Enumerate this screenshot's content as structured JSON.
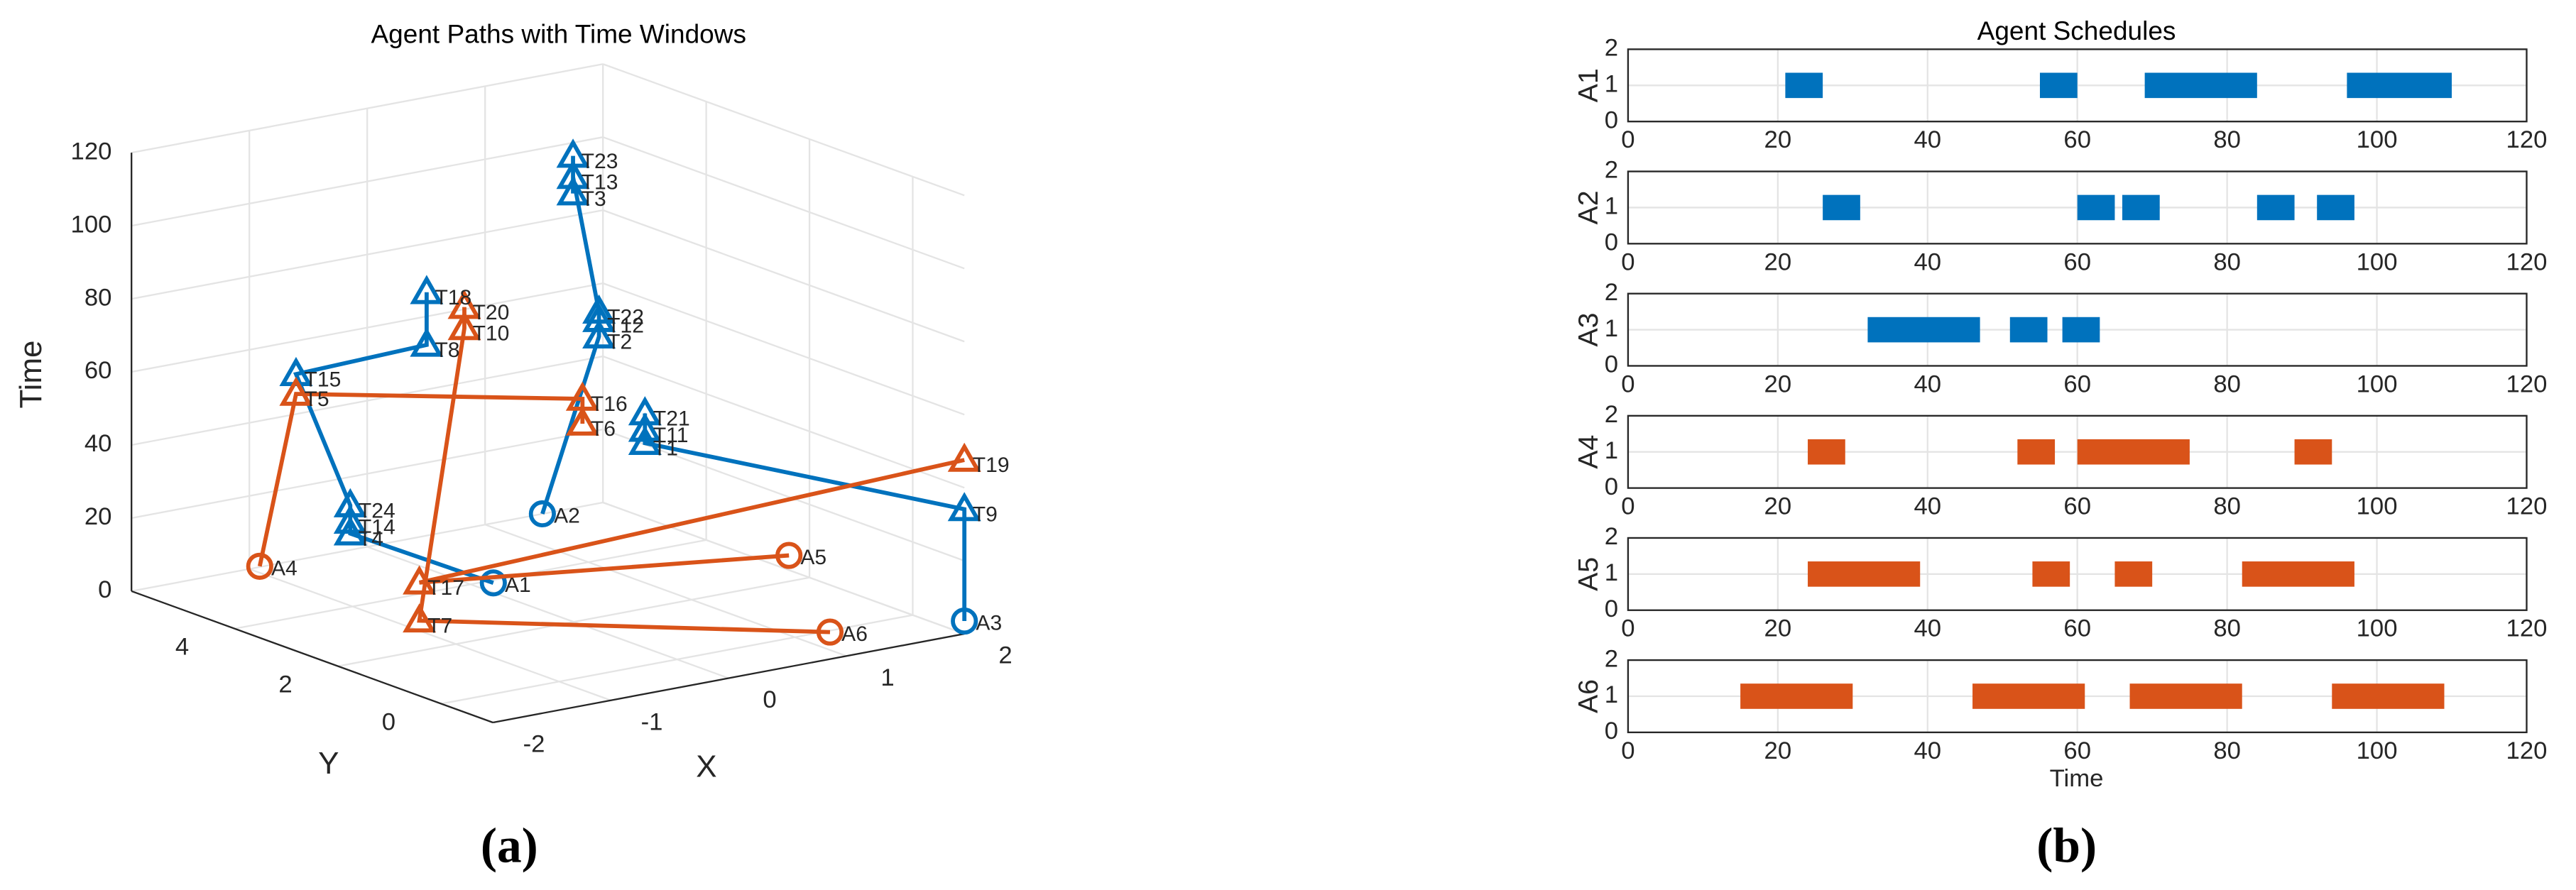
{
  "chart_data": [
    {
      "type": "path3d",
      "title": "Agent Paths with Time Windows",
      "panel_label": "(a)",
      "xlabel": "X",
      "ylabel": "Y",
      "zlabel": "Time",
      "xlim": [
        -2,
        2
      ],
      "ylim": [
        -1,
        6
      ],
      "zlim": [
        0,
        120
      ],
      "xticks": [
        -2,
        -1,
        0,
        1,
        2
      ],
      "yticks": [
        0,
        2,
        4
      ],
      "zticks": [
        0,
        20,
        40,
        60,
        80,
        100,
        120
      ],
      "grid": true,
      "tasks": {
        "labels": [
          "T1",
          "T2",
          "T3",
          "T4",
          "T5",
          "T6",
          "T7",
          "T8",
          "T9",
          "T10",
          "T11",
          "T12",
          "T13",
          "T14",
          "T15",
          "T16",
          "T17",
          "T18",
          "T19",
          "T20",
          "T21",
          "T22",
          "T23",
          "T24"
        ],
        "x": [
          1.48,
          1.09,
          0.87,
          -1.02,
          -1.48,
          0.95,
          -1.31,
          -0.81,
          2,
          -0.49,
          1.48,
          1.09,
          0.87,
          -1.02,
          -1.48,
          0.95,
          -1.31,
          -0.81,
          2,
          -0.49,
          1.48,
          1.09,
          0.87,
          -1.02
        ],
        "y": [
          4,
          4,
          4,
          4,
          4,
          4,
          2,
          3,
          -1,
          3,
          4,
          4,
          4,
          4,
          4,
          4,
          2,
          3,
          -1,
          3,
          4,
          4,
          4,
          4
        ],
        "z": [
          29.7,
          61.2,
          101.7,
          20.1,
          61.1,
          38.2,
          8.3,
          75.6,
          34.1,
          78.2,
          33.3,
          65.7,
          106.2,
          23.3,
          66.5,
          45.0,
          18.7,
          90.0,
          47.6,
          84.0,
          37.8,
          68.0,
          112.0,
          27.8
        ]
      },
      "agents": [
        {
          "label": "A1",
          "color": "#0072BD",
          "x": 0.15,
          "y": 3.9,
          "z": 0,
          "tasks": [
            3,
            13,
            23,
            14,
            7,
            17
          ]
        },
        {
          "label": "A2",
          "color": "#0072BD",
          "x": 0.61,
          "y": 4,
          "z": 15.6,
          "tasks": [
            1,
            11,
            21,
            12,
            22,
            2
          ]
        },
        {
          "label": "A3",
          "color": "#0072BD",
          "x": 2,
          "y": -1,
          "z": 3.5,
          "tasks": [
            8,
            0,
            10,
            20
          ]
        },
        {
          "label": "A4",
          "color": "#D95319",
          "x": -1.35,
          "y": 5,
          "z": 8,
          "tasks": [
            4,
            15,
            5
          ]
        },
        {
          "label": "A5",
          "color": "#D95319",
          "x": 0.95,
          "y": 0,
          "z": 22.7,
          "tasks": [
            16,
            18
          ]
        },
        {
          "label": "A6",
          "color": "#D95319",
          "x": 0.86,
          "y": -1,
          "z": 7.4,
          "tasks": [
            6,
            9,
            19
          ]
        }
      ]
    },
    {
      "type": "gantt",
      "title": "Agent Schedules",
      "panel_label": "(b)",
      "xlabel": "Time",
      "xlim": [
        0,
        120
      ],
      "xticks": [
        0,
        20,
        40,
        60,
        80,
        100,
        120
      ],
      "ylim": [
        0,
        2
      ],
      "yticks": [
        0,
        1,
        2
      ],
      "bar_y": 1,
      "grid": true,
      "rows": [
        {
          "label": "A1",
          "color": "#0072BD",
          "starts": [
            21,
            55,
            69,
            96
          ],
          "ends": [
            26,
            60,
            84,
            110
          ]
        },
        {
          "label": "A2",
          "color": "#0072BD",
          "starts": [
            26,
            60,
            66,
            84,
            92
          ],
          "ends": [
            31,
            65,
            71,
            89,
            97
          ]
        },
        {
          "label": "A3",
          "color": "#0072BD",
          "starts": [
            32,
            51,
            58
          ],
          "ends": [
            47,
            56,
            63
          ]
        },
        {
          "label": "A4",
          "color": "#D95319",
          "starts": [
            24,
            52,
            60,
            89
          ],
          "ends": [
            29,
            57,
            75,
            94
          ]
        },
        {
          "label": "A5",
          "color": "#D95319",
          "starts": [
            24,
            54,
            65,
            82
          ],
          "ends": [
            39,
            59,
            70,
            97
          ]
        },
        {
          "label": "A6",
          "color": "#D95319",
          "starts": [
            15,
            46,
            67,
            94
          ],
          "ends": [
            30,
            61,
            82,
            109
          ]
        }
      ]
    }
  ]
}
